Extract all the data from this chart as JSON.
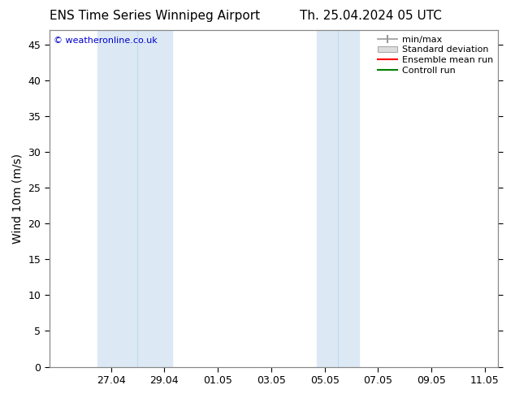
{
  "title_left": "ENS Time Series Winnipeg Airport",
  "title_right": "Th. 25.04.2024 05 UTC",
  "ylabel": "Wind 10m (m/s)",
  "watermark": "© weatheronline.co.uk",
  "ylim": [
    0,
    47
  ],
  "yticks": [
    0,
    5,
    10,
    15,
    20,
    25,
    30,
    35,
    40,
    45
  ],
  "xtick_labels": [
    "27.04",
    "29.04",
    "01.05",
    "03.05",
    "05.05",
    "07.05",
    "09.05",
    "11.05"
  ],
  "xtick_positions": [
    2,
    4,
    6,
    8,
    10,
    12,
    14,
    16
  ],
  "xlim": [
    -0.3,
    16.5
  ],
  "background_color": "#ffffff",
  "plot_bg_color": "#ffffff",
  "shaded_regions": [
    {
      "x_start": 1.5,
      "x_end": 4.3,
      "color": "#dce9f5"
    },
    {
      "x_start": 9.7,
      "x_end": 11.3,
      "color": "#dce9f5"
    }
  ],
  "inner_dividers": [
    3.0,
    10.5
  ],
  "legend_items": [
    {
      "label": "min/max",
      "color": "#aaaaaa",
      "style": "line_with_cap"
    },
    {
      "label": "Standard deviation",
      "color": "#cccccc",
      "style": "filled_box"
    },
    {
      "label": "Ensemble mean run",
      "color": "#ff0000",
      "style": "line"
    },
    {
      "label": "Controll run",
      "color": "#008000",
      "style": "line"
    }
  ],
  "title_fontsize": 11,
  "tick_label_fontsize": 9,
  "ylabel_fontsize": 10,
  "legend_fontsize": 8,
  "watermark_color": "#0000cc",
  "watermark_fontsize": 8
}
